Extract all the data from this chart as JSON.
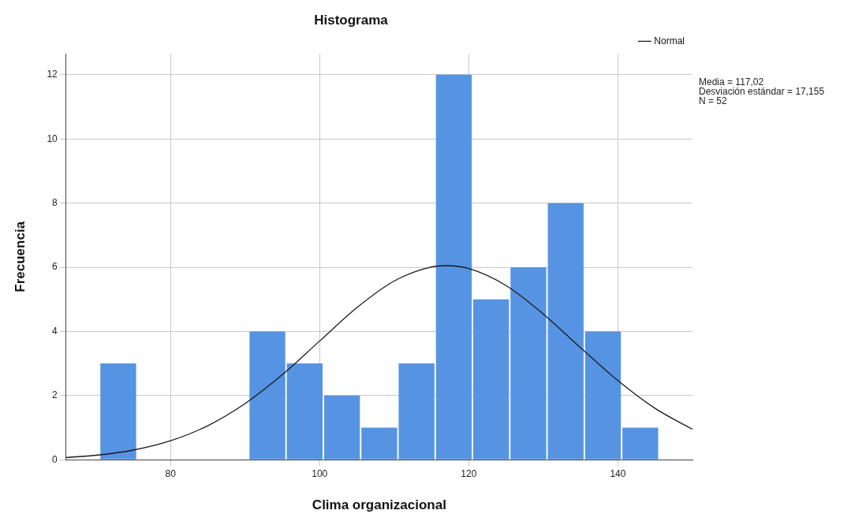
{
  "chart_data": {
    "type": "histogram",
    "title": "Histograma",
    "xlabel": "Clima organizacional",
    "ylabel": "Frecuencia",
    "bins": [
      70.5,
      75.5,
      80.5,
      85.5,
      90.5,
      95.5,
      100.5,
      105.5,
      110.5,
      115.5,
      120.5,
      125.5,
      130.5,
      135.5,
      140.5,
      145.5
    ],
    "values": [
      3,
      0,
      0,
      0,
      4,
      3,
      2,
      1,
      3,
      12,
      5,
      6,
      8,
      4,
      1
    ],
    "color": "#5694e3",
    "series": [
      {
        "name": "Normal",
        "type": "line",
        "color": "#1a1a1a",
        "marker": "none",
        "x": [
          66,
          70,
          75,
          80,
          85,
          90,
          95,
          100,
          105,
          110,
          115,
          117,
          120,
          125,
          130,
          135,
          140,
          145,
          150
        ],
        "values": [
          0.07,
          0.14,
          0.3,
          0.59,
          1.06,
          1.75,
          2.65,
          3.7,
          4.74,
          5.57,
          6.01,
          6.05,
          5.96,
          5.43,
          4.54,
          3.49,
          2.47,
          1.6,
          0.95
        ]
      }
    ],
    "xlim": [
      66,
      150
    ],
    "xticks": [
      80,
      100,
      120,
      140
    ],
    "ylim": [
      0,
      12.65
    ],
    "yticks": [
      0,
      2,
      4,
      6,
      8,
      10,
      12
    ],
    "grid": true,
    "legend": "top right",
    "annotations": [
      "Media = 117,02",
      "Desviación estándar = 17,155",
      "N = 52"
    ]
  }
}
